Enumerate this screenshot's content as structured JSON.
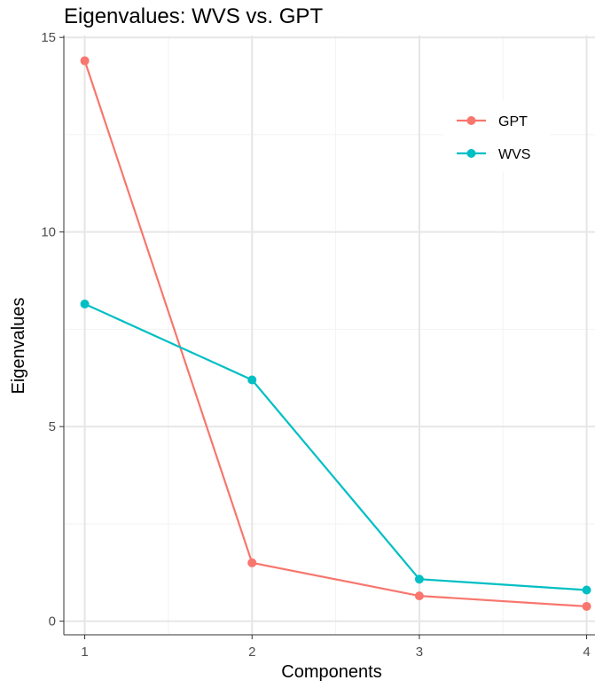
{
  "chart_data": {
    "type": "line",
    "title": "Eigenvalues: WVS vs. GPT",
    "xlabel": "Components",
    "ylabel": "Eigenvalues",
    "x": [
      1,
      2,
      3,
      4
    ],
    "xlim": [
      0.875,
      4.05
    ],
    "ylim": [
      -0.35,
      15.05
    ],
    "x_ticks": [
      1,
      2,
      3,
      4
    ],
    "y_ticks": [
      0,
      5,
      10,
      15
    ],
    "grid": true,
    "legend_position": "top-right",
    "series": [
      {
        "name": "GPT",
        "color": "#F8766D",
        "values": [
          14.4,
          1.5,
          0.65,
          0.38
        ]
      },
      {
        "name": "WVS",
        "color": "#00BFC4",
        "values": [
          8.15,
          6.2,
          1.08,
          0.8
        ]
      }
    ]
  }
}
